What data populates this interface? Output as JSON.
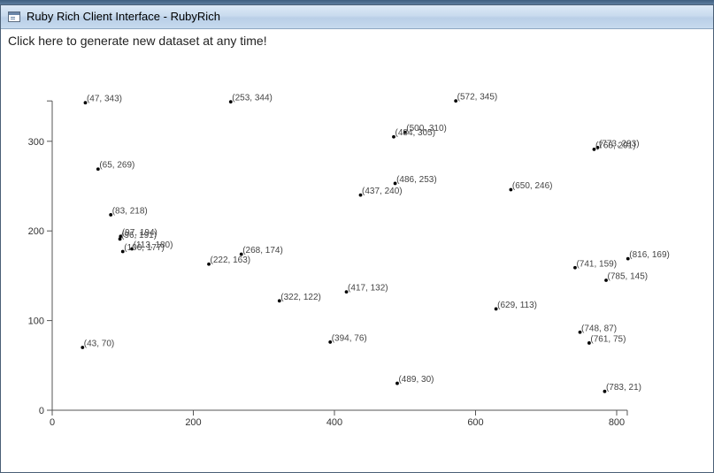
{
  "window": {
    "title": "Ruby Rich Client Interface - RubyRich",
    "generate_link": "Click here to generate new dataset at any time!"
  },
  "chart_data": {
    "type": "scatter",
    "title": "",
    "xlabel": "",
    "ylabel": "",
    "xlim": [
      0,
      815
    ],
    "ylim": [
      0,
      345
    ],
    "x_ticks": [
      0,
      200,
      400,
      600,
      800
    ],
    "y_ticks": [
      0,
      100,
      200,
      300
    ],
    "grid": false,
    "points": [
      {
        "x": 47,
        "y": 343,
        "label": "(47, 343)"
      },
      {
        "x": 253,
        "y": 344,
        "label": "(253, 344)"
      },
      {
        "x": 572,
        "y": 345,
        "label": "(572, 345)"
      },
      {
        "x": 500,
        "y": 310,
        "label": "(500, 310)"
      },
      {
        "x": 484,
        "y": 305,
        "label": "(484, 305)"
      },
      {
        "x": 773,
        "y": 293,
        "label": "(773, 293)"
      },
      {
        "x": 768,
        "y": 291,
        "label": "(768, 291)"
      },
      {
        "x": 65,
        "y": 269,
        "label": "(65, 269)"
      },
      {
        "x": 486,
        "y": 253,
        "label": "(486, 253)"
      },
      {
        "x": 650,
        "y": 246,
        "label": "(650, 246)"
      },
      {
        "x": 437,
        "y": 240,
        "label": "(437, 240)"
      },
      {
        "x": 83,
        "y": 218,
        "label": "(83, 218)"
      },
      {
        "x": 97,
        "y": 194,
        "label": "(97, 194)"
      },
      {
        "x": 96,
        "y": 191,
        "label": "(96, 191)"
      },
      {
        "x": 113,
        "y": 180,
        "label": "(113, 180)"
      },
      {
        "x": 100,
        "y": 177,
        "label": "(100, 177)"
      },
      {
        "x": 268,
        "y": 174,
        "label": "(268, 174)"
      },
      {
        "x": 816,
        "y": 169,
        "label": "(816, 169)"
      },
      {
        "x": 222,
        "y": 163,
        "label": "(222, 163)"
      },
      {
        "x": 741,
        "y": 159,
        "label": "(741, 159)"
      },
      {
        "x": 785,
        "y": 145,
        "label": "(785, 145)"
      },
      {
        "x": 417,
        "y": 132,
        "label": "(417, 132)"
      },
      {
        "x": 322,
        "y": 122,
        "label": "(322, 122)"
      },
      {
        "x": 629,
        "y": 113,
        "label": "(629, 113)"
      },
      {
        "x": 748,
        "y": 87,
        "label": "(748, 87)"
      },
      {
        "x": 394,
        "y": 76,
        "label": "(394, 76)"
      },
      {
        "x": 761,
        "y": 75,
        "label": "(761, 75)"
      },
      {
        "x": 43,
        "y": 70,
        "label": "(43, 70)"
      },
      {
        "x": 489,
        "y": 30,
        "label": "(489, 30)"
      },
      {
        "x": 783,
        "y": 21,
        "label": "(783, 21)"
      }
    ]
  }
}
